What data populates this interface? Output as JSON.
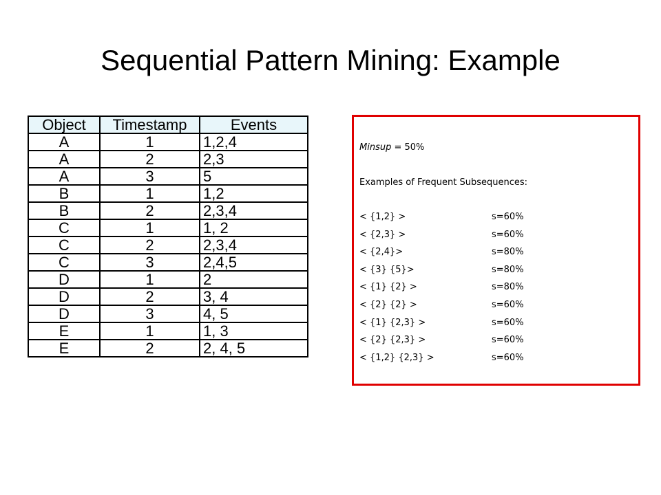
{
  "title": "Sequential Pattern Mining: Example",
  "table": {
    "header": [
      "Object",
      "Timestamp",
      "Events"
    ],
    "rows": [
      [
        "A",
        "1",
        "1,2,4"
      ],
      [
        "A",
        "2",
        "2,3"
      ],
      [
        "A",
        "3",
        "5"
      ],
      [
        "B",
        "1",
        "1,2"
      ],
      [
        "B",
        "2",
        "2,3,4"
      ],
      [
        "C",
        "1",
        "1, 2"
      ],
      [
        "C",
        "2",
        "2,3,4"
      ],
      [
        "C",
        "3",
        "2,4,5"
      ],
      [
        "D",
        "1",
        "2"
      ],
      [
        "D",
        "2",
        "3, 4"
      ],
      [
        "D",
        "3",
        "4, 5"
      ],
      [
        "E",
        "1",
        "1, 3"
      ],
      [
        "E",
        "2",
        "2, 4, 5"
      ]
    ]
  },
  "box": {
    "minsup_label": "Minsup",
    "minsup_value": "= 50%",
    "heading": "Examples of Frequent Subsequences:",
    "items": [
      {
        "pattern": "< {1,2} >",
        "support": "s=60%"
      },
      {
        "pattern": "< {2,3} >",
        "support": "s=60%"
      },
      {
        "pattern": "< {2,4}>",
        "support": "s=80%"
      },
      {
        "pattern": "< {3} {5}>",
        "support": "s=80%"
      },
      {
        "pattern": "< {1} {2} >",
        "support": "s=80%"
      },
      {
        "pattern": "< {2} {2} >",
        "support": "s=60%"
      },
      {
        "pattern": "< {1} {2,3} >",
        "support": "s=60%"
      },
      {
        "pattern": "< {2} {2,3} >",
        "support": "s=60%"
      },
      {
        "pattern": "< {1,2} {2,3} >",
        "support": "s=60%"
      }
    ]
  }
}
